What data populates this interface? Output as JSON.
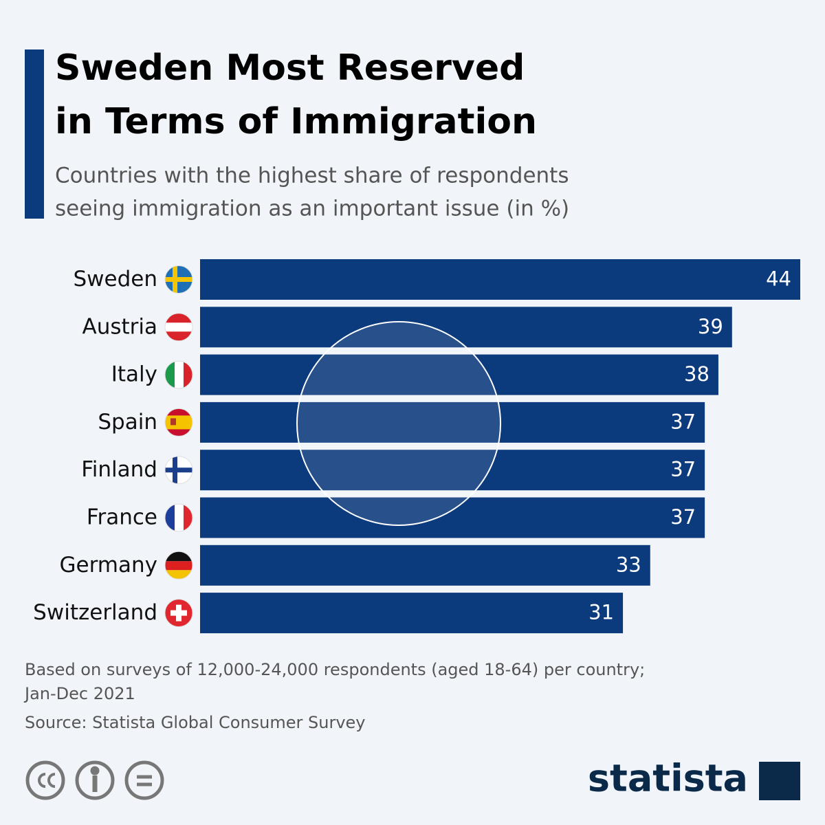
{
  "chart_data": {
    "type": "bar",
    "orientation": "horizontal",
    "title": [
      "Sweden Most Reserved",
      "in Terms of Immigration"
    ],
    "subtitle": [
      "Countries with the highest share of respondents",
      "seeing immigration as an important issue (in %)"
    ],
    "categories": [
      "Sweden",
      "Austria",
      "Italy",
      "Spain",
      "Finland",
      "France",
      "Germany",
      "Switzerland"
    ],
    "values": [
      44,
      39,
      38,
      37,
      37,
      37,
      33,
      31
    ],
    "color": "#0b3a7d",
    "note": [
      "Based on surveys of 12,000-24,000 respondents (aged 18-64) per country;",
      "Jan-Dec 2021"
    ],
    "source": "Source: Statista Global Consumer Survey",
    "brand": "statista"
  }
}
